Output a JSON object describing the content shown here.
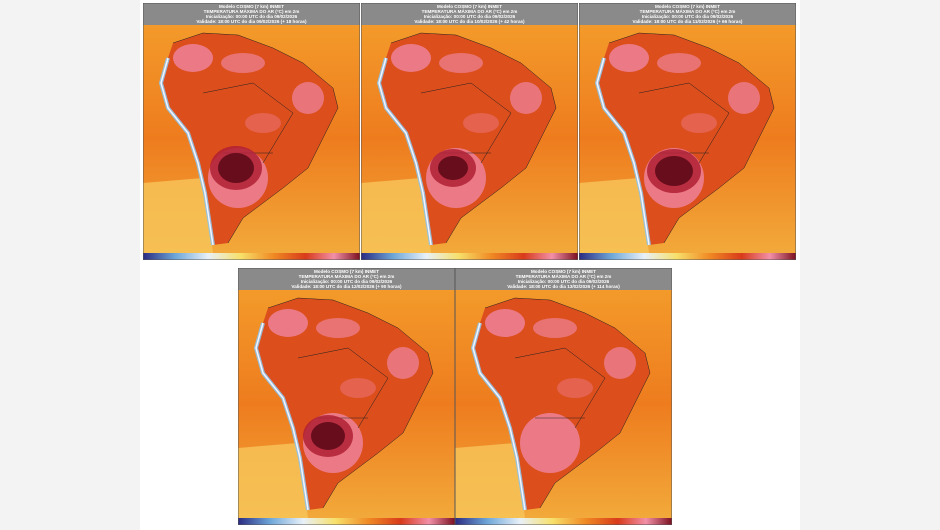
{
  "panels": [
    {
      "model": "Modelo COSMO (7 km) INMET",
      "title": "TEMPERATURA MÁXIMA DO AR (°C) em 2m",
      "init": "Inicialização: 00:00 UTC do dia 09/02/2026",
      "valid": "Validade: 18:00 UTC do dia 09/02/2026 (+ 18 horas)"
    },
    {
      "model": "Modelo COSMO (7 km) INMET",
      "title": "TEMPERATURA MÁXIMA DO AR (°C) em 2m",
      "init": "Inicialização: 00:00 UTC do dia 09/02/2026",
      "valid": "Validade: 18:00 UTC do dia 10/02/2026 (+ 42 horas)"
    },
    {
      "model": "Modelo COSMO (7 km) INMET",
      "title": "TEMPERATURA MÁXIMA DO AR (°C) em 2m",
      "init": "Inicialização: 00:00 UTC do dia 09/02/2026",
      "valid": "Validade: 18:00 UTC do dia 11/02/2026 (+ 66 horas)"
    },
    {
      "model": "Modelo COSMO (7 km) INMET",
      "title": "TEMPERATURA MÁXIMA DO AR (°C) em 2m",
      "init": "Inicialização: 00:00 UTC do dia 09/02/2026",
      "valid": "Validade: 18:00 UTC do dia 12/02/2026 (+ 90 horas)"
    },
    {
      "model": "Modelo COSMO (7 km) INMET",
      "title": "TEMPERATURA MÁXIMA DO AR (°C) em 2m",
      "init": "Inicialização: 00:00 UTC do dia 09/02/2026",
      "valid": "Validade: 18:00 UTC do dia 13/02/2026 (+ 114 horas)"
    }
  ]
}
